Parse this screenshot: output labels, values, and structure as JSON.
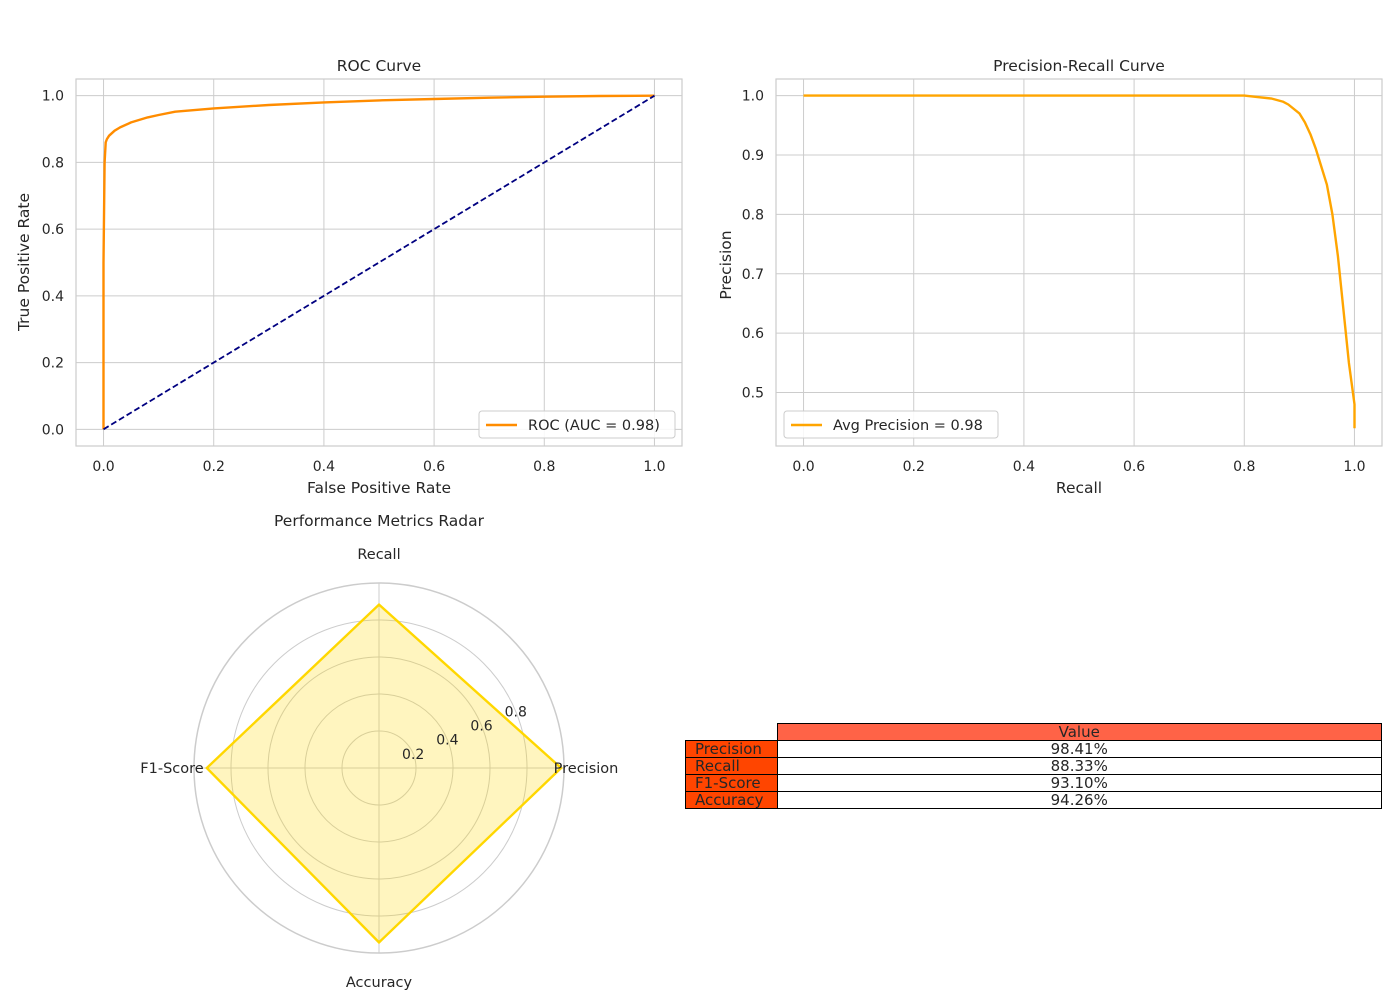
{
  "chart_data": [
    {
      "type": "line",
      "title": "ROC Curve",
      "xlabel": "False Positive Rate",
      "ylabel": "True Positive Rate",
      "xlim": [
        -0.05,
        1.05
      ],
      "ylim": [
        -0.05,
        1.05
      ],
      "xticks": [
        "0.0",
        "0.2",
        "0.4",
        "0.6",
        "0.8",
        "1.0"
      ],
      "yticks": [
        "0.0",
        "0.2",
        "0.4",
        "0.6",
        "0.8",
        "1.0"
      ],
      "grid": true,
      "legend_position": "lower right",
      "series": [
        {
          "name": "ROC (AUC = 0.98)",
          "color": "#ff8c00",
          "style": "solid",
          "x": [
            0.0,
            0.0,
            0.002,
            0.004,
            0.006,
            0.01,
            0.02,
            0.03,
            0.05,
            0.08,
            0.1,
            0.13,
            0.2,
            0.3,
            0.4,
            0.5,
            0.6,
            0.7,
            0.8,
            0.9,
            1.0
          ],
          "y": [
            0.0,
            0.5,
            0.8,
            0.86,
            0.87,
            0.88,
            0.895,
            0.905,
            0.92,
            0.935,
            0.942,
            0.952,
            0.962,
            0.972,
            0.98,
            0.986,
            0.99,
            0.994,
            0.997,
            0.999,
            1.0
          ]
        },
        {
          "name": "",
          "color": "#000080",
          "style": "dashed",
          "x": [
            0.0,
            1.0
          ],
          "y": [
            0.0,
            1.0
          ]
        }
      ]
    },
    {
      "type": "line",
      "title": "Precision-Recall Curve",
      "xlabel": "Recall",
      "ylabel": "Precision",
      "xlim": [
        -0.05,
        1.05
      ],
      "ylim": [
        0.41,
        1.028
      ],
      "xticks": [
        "0.0",
        "0.2",
        "0.4",
        "0.6",
        "0.8",
        "1.0"
      ],
      "yticks": [
        "0.5",
        "0.6",
        "0.7",
        "0.8",
        "0.9",
        "1.0"
      ],
      "grid": true,
      "legend_position": "lower left",
      "series": [
        {
          "name": "Avg Precision = 0.98",
          "color": "#ffa500",
          "style": "solid",
          "x": [
            0.0,
            0.2,
            0.4,
            0.6,
            0.8,
            0.82,
            0.85,
            0.87,
            0.88,
            0.9,
            0.91,
            0.92,
            0.93,
            0.94,
            0.95,
            0.96,
            0.97,
            0.98,
            0.99,
            1.0,
            1.0
          ],
          "y": [
            1.0,
            1.0,
            1.0,
            1.0,
            1.0,
            0.998,
            0.995,
            0.99,
            0.985,
            0.97,
            0.955,
            0.935,
            0.91,
            0.88,
            0.85,
            0.8,
            0.73,
            0.64,
            0.55,
            0.48,
            0.44
          ]
        }
      ]
    },
    {
      "type": "radar",
      "title": "Performance Metrics Radar",
      "categories": [
        "Precision",
        "Recall",
        "F1-Score",
        "Accuracy"
      ],
      "values": [
        0.9841,
        0.8833,
        0.931,
        0.9426
      ],
      "rlim": [
        0,
        1.0
      ],
      "rticks": [
        "0.2",
        "0.4",
        "0.6",
        "0.8"
      ],
      "color": "#ffd700"
    },
    {
      "type": "table",
      "col_labels": [
        "Value"
      ],
      "row_labels": [
        "Precision",
        "Recall",
        "F1-Score",
        "Accuracy"
      ],
      "values": [
        "98.41%",
        "88.33%",
        "93.10%",
        "94.26%"
      ],
      "header_color": "#ff6347",
      "row_label_color": "#ff4500"
    }
  ]
}
